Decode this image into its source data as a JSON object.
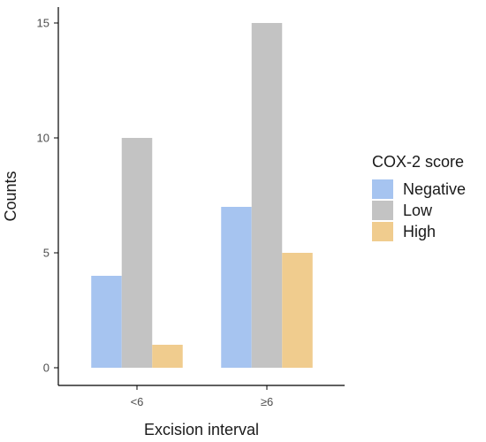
{
  "chart_data": {
    "type": "bar",
    "xlabel": "Excision interval",
    "ylabel": "Counts",
    "categories": [
      "<6",
      "≥6"
    ],
    "series": [
      {
        "name": "Negative",
        "color": "#a6c4f0",
        "values": [
          4,
          7
        ]
      },
      {
        "name": "Low",
        "color": "#c3c3c3",
        "values": [
          10,
          15
        ]
      },
      {
        "name": "High",
        "color": "#f0cc8e",
        "values": [
          1,
          5
        ]
      }
    ],
    "ylim": [
      0,
      16
    ],
    "yticks": [
      0,
      5,
      10,
      15
    ],
    "grid": false,
    "legend": {
      "title": "COX-2 score",
      "placement": "right"
    }
  }
}
